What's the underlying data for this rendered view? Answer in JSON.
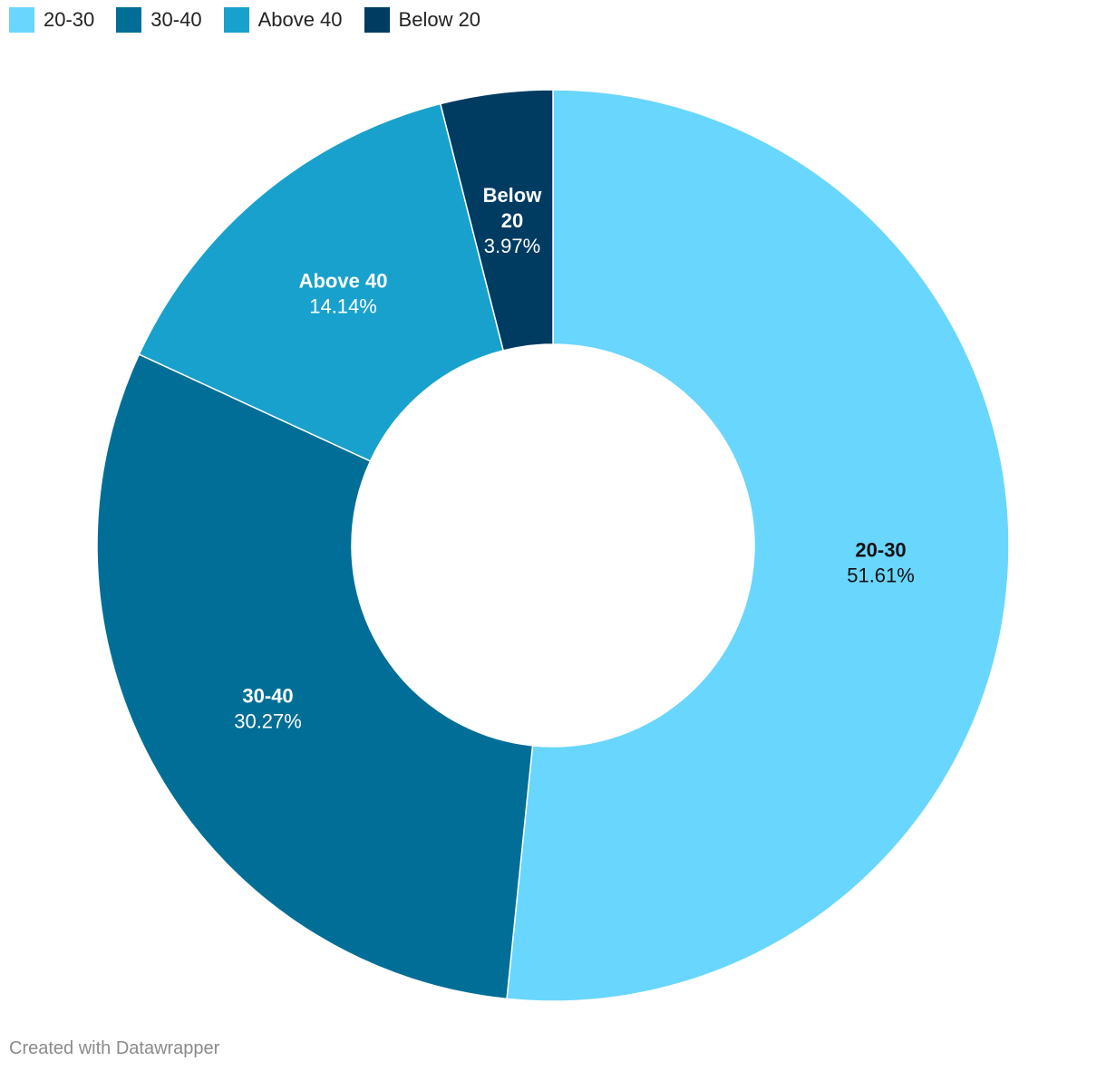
{
  "chart_data": {
    "type": "pie",
    "donut": true,
    "categories": [
      "20-30",
      "30-40",
      "Above 40",
      "Below 20"
    ],
    "values": [
      51.61,
      30.27,
      14.14,
      3.97
    ],
    "value_labels": [
      "51.61%",
      "30.27%",
      "14.14%",
      "3.97%"
    ],
    "slice_label_names": [
      [
        "20-30"
      ],
      [
        "30-40"
      ],
      [
        "Above 40"
      ],
      [
        "Below",
        "20"
      ]
    ],
    "colors": [
      "#69d6fd",
      "#006e97",
      "#19a1cd",
      "#003b62"
    ],
    "label_text_colors": [
      "#111111",
      "#ffffff",
      "#ffffff",
      "#ffffff"
    ],
    "legend_placement": "top-left",
    "title": "",
    "footer": "Created with Datawrapper"
  }
}
